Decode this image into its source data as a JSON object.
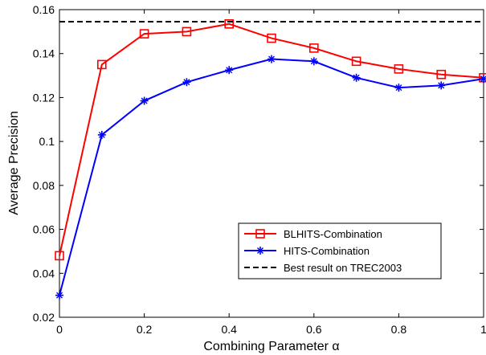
{
  "chart_data": {
    "type": "line",
    "xlabel": "Combining Parameter α",
    "ylabel": "Average Precision",
    "xlim": [
      0,
      1
    ],
    "ylim": [
      0.02,
      0.16
    ],
    "xticks": [
      0,
      0.2,
      0.4,
      0.6,
      0.8,
      1
    ],
    "xtick_labels": [
      "0",
      "0.2",
      "0.4",
      "0.6",
      "0.8",
      "1"
    ],
    "yticks": [
      0.02,
      0.04,
      0.06,
      0.08,
      0.1,
      0.12,
      0.14,
      0.16
    ],
    "ytick_labels": [
      "0.02",
      "0.04",
      "0.06",
      "0.08",
      "0.1",
      "0.12",
      "0.14",
      "0.16"
    ],
    "grid": false,
    "legend_position": "lower-right",
    "x": [
      0,
      0.1,
      0.2,
      0.3,
      0.4,
      0.5,
      0.6,
      0.7,
      0.8,
      0.9,
      1.0
    ],
    "series": [
      {
        "name": "BLHITS-Combination",
        "color": "#ff0000",
        "marker": "square",
        "values": [
          0.048,
          0.135,
          0.149,
          0.15,
          0.1535,
          0.147,
          0.1425,
          0.1365,
          0.133,
          0.1305,
          0.129
        ]
      },
      {
        "name": "HITS-Combination",
        "color": "#0000ff",
        "marker": "star",
        "values": [
          0.03,
          0.103,
          0.1185,
          0.127,
          0.1325,
          0.1375,
          0.1365,
          0.129,
          0.1245,
          0.1255,
          0.1285
        ]
      },
      {
        "name": "Best result on TREC2003",
        "color": "#000000",
        "style": "dashed",
        "constant": 0.1545
      }
    ]
  }
}
